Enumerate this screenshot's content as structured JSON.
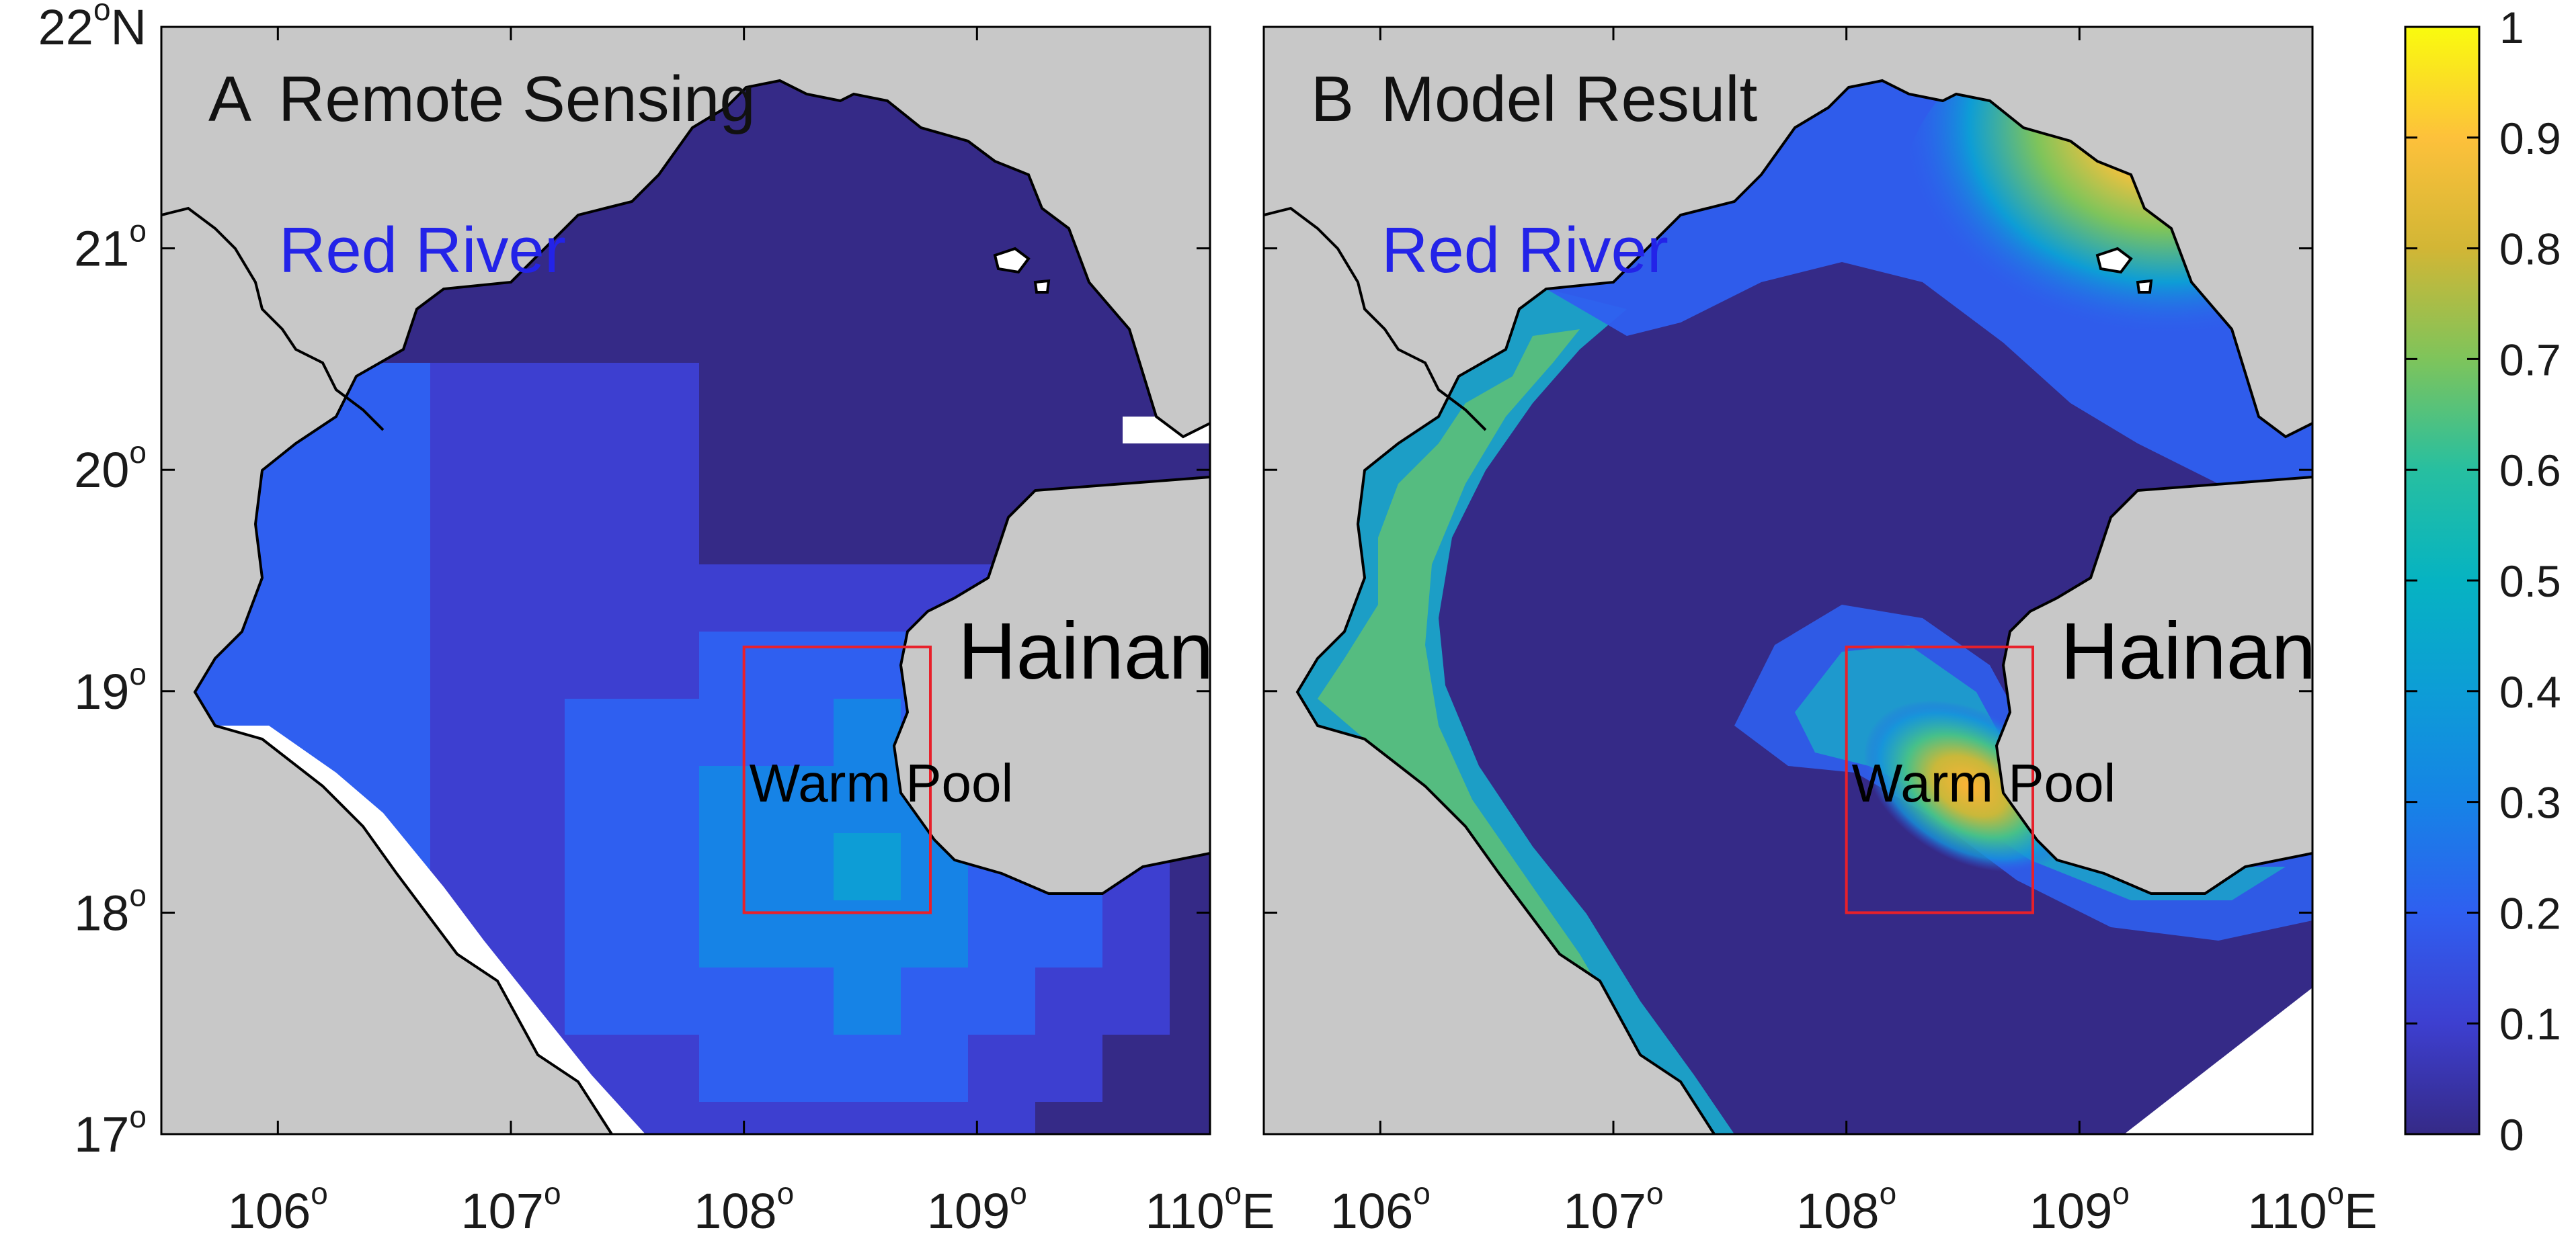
{
  "panels": [
    {
      "id": "A",
      "letter": "A",
      "title": "Remote Sensing",
      "labels": {
        "river": "Red River",
        "island": "Hainan",
        "box": "Warm Pool"
      }
    },
    {
      "id": "B",
      "letter": "B",
      "title": "Model Result",
      "labels": {
        "river": "Red River",
        "island": "Hainan",
        "box": "Warm Pool"
      }
    }
  ],
  "axes": {
    "lon_range": [
      105.5,
      110
    ],
    "lat_range": [
      17,
      22
    ],
    "lon_ticks": [
      {
        "deg": "106",
        "sup": "o",
        "suffix": ""
      },
      {
        "deg": "107",
        "sup": "o",
        "suffix": ""
      },
      {
        "deg": "108",
        "sup": "o",
        "suffix": ""
      },
      {
        "deg": "109",
        "sup": "o",
        "suffix": ""
      },
      {
        "deg": "110",
        "sup": "o",
        "suffix": "E"
      }
    ],
    "lat_ticks": [
      {
        "deg": "22",
        "sup": "o",
        "suffix": "N"
      },
      {
        "deg": "21",
        "sup": "o",
        "suffix": ""
      },
      {
        "deg": "20",
        "sup": "o",
        "suffix": ""
      },
      {
        "deg": "19",
        "sup": "o",
        "suffix": ""
      },
      {
        "deg": "18",
        "sup": "o",
        "suffix": ""
      },
      {
        "deg": "17",
        "sup": "o",
        "suffix": ""
      }
    ]
  },
  "warm_pool_box": {
    "lon_min": 108,
    "lon_max": 108.8,
    "lat_min": 18,
    "lat_max": 19.2,
    "color": "#e8202a"
  },
  "colorbar": {
    "range": [
      0,
      1
    ],
    "ticks": [
      "1",
      "0.9",
      "0.8",
      "0.7",
      "0.6",
      "0.5",
      "0.4",
      "0.3",
      "0.2",
      "0.1",
      "0"
    ],
    "colormap": "parula"
  },
  "colors": {
    "land": "#c8c8c8",
    "coast": "#000000",
    "low": "#3a2c9c",
    "high": "#f9f71e"
  }
}
